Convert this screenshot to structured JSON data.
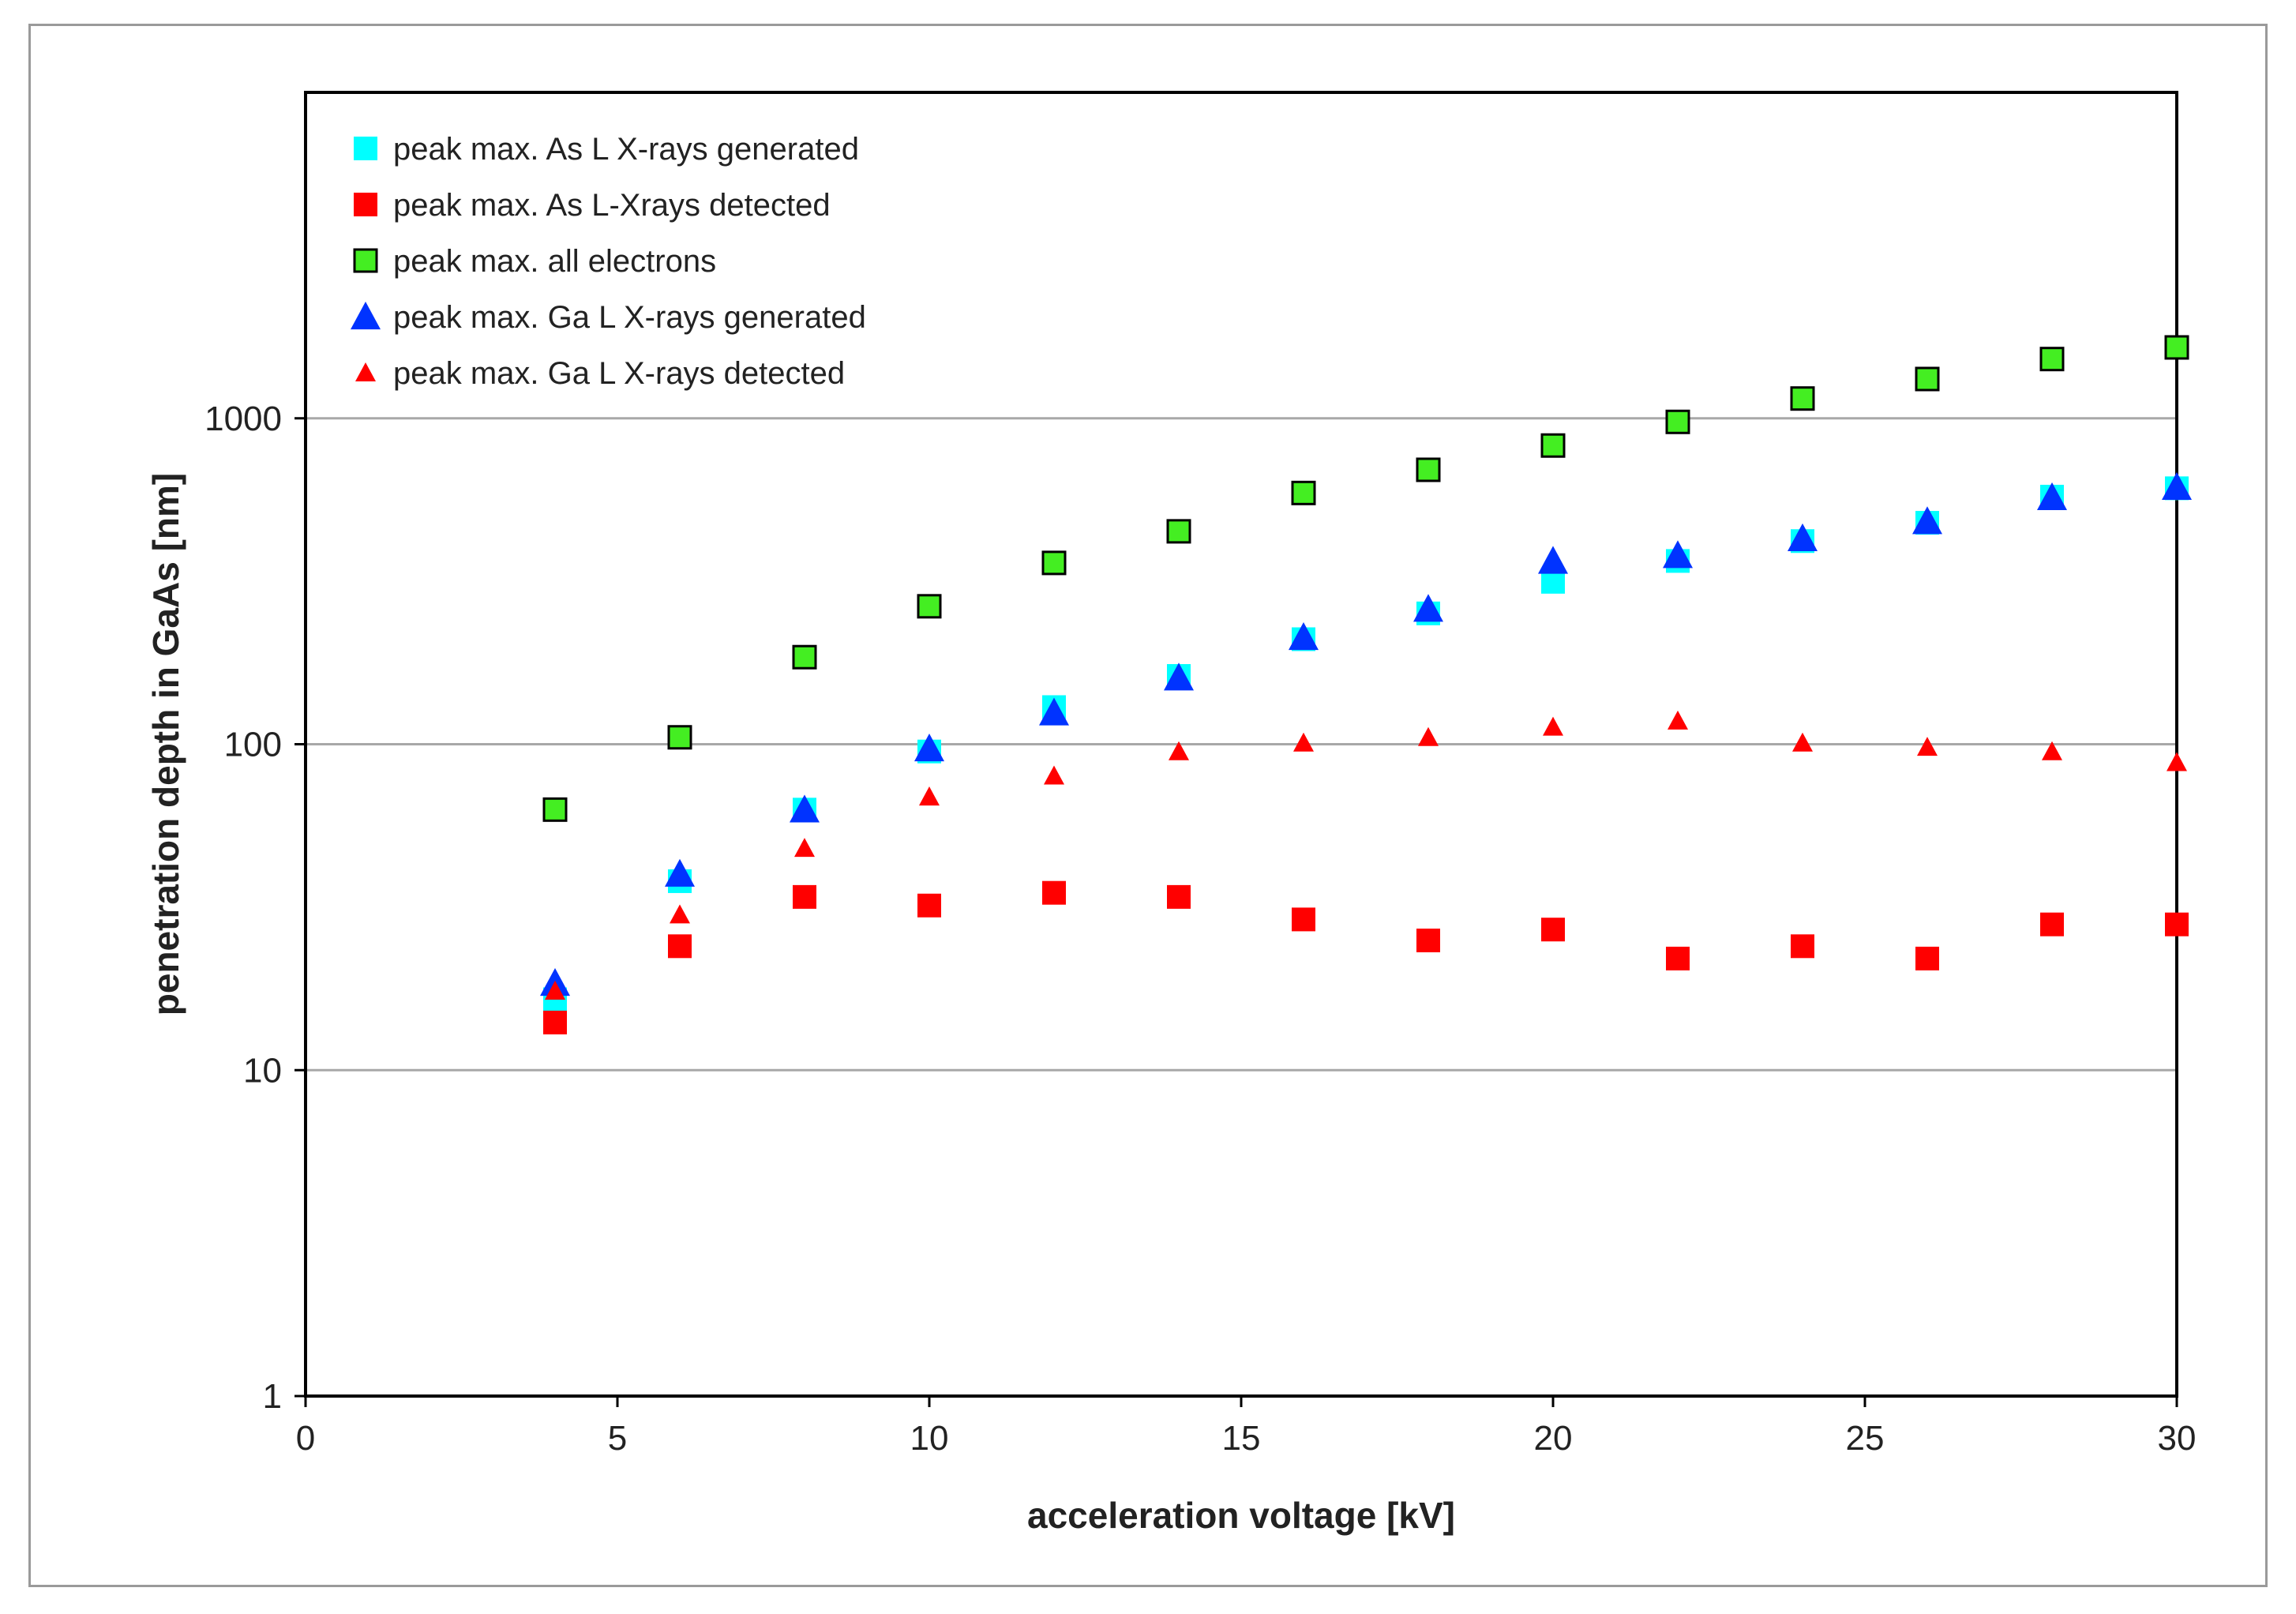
{
  "chart_data": {
    "type": "scatter",
    "title": "",
    "xlabel": "acceleration voltage [kV]",
    "ylabel": "penetration depth in GaAs [nm]",
    "xlim": [
      0,
      30
    ],
    "ylim": [
      1,
      10000
    ],
    "yscale": "log",
    "x_ticks": [
      0,
      5,
      10,
      15,
      20,
      25,
      30
    ],
    "y_ticks": [
      1,
      10,
      100,
      1000
    ],
    "y_gridlines": [
      10,
      100,
      1000
    ],
    "legend_position": "top-left",
    "series": [
      {
        "name": "peak max. As L X-rays generated",
        "marker": "square",
        "fill": "#00ffff",
        "stroke": "#00ffff",
        "x": [
          4,
          6,
          8,
          10,
          12,
          14,
          16,
          18,
          20,
          22,
          24,
          26,
          28,
          30
        ],
        "y": [
          16.5,
          38,
          63,
          95,
          130,
          162,
          210,
          252,
          315,
          365,
          420,
          478,
          575,
          610
        ]
      },
      {
        "name": "peak max. As L-Xrays detected",
        "marker": "square",
        "fill": "#ff0000",
        "stroke": "#ff0000",
        "x": [
          4,
          6,
          8,
          10,
          12,
          14,
          16,
          18,
          20,
          22,
          24,
          26,
          28,
          30
        ],
        "y": [
          14,
          24,
          34,
          32,
          35,
          34,
          29,
          25,
          27,
          22,
          24,
          22,
          28,
          28
        ]
      },
      {
        "name": "peak max. all electrons",
        "marker": "square-outline",
        "fill": "#44ee22",
        "stroke": "#000000",
        "x": [
          4,
          6,
          8,
          10,
          12,
          14,
          16,
          18,
          20,
          22,
          24,
          26,
          28,
          30
        ],
        "y": [
          63,
          105,
          185,
          265,
          360,
          450,
          590,
          695,
          825,
          975,
          1150,
          1320,
          1520,
          1650
        ]
      },
      {
        "name": "peak max. Ga L X-rays generated",
        "marker": "triangle",
        "fill": "#0033ff",
        "stroke": "#0033ff",
        "x": [
          4,
          6,
          8,
          10,
          12,
          14,
          16,
          18,
          20,
          22,
          24,
          26,
          28,
          30
        ],
        "y": [
          18.5,
          40,
          63,
          97,
          125,
          160,
          213,
          260,
          365,
          380,
          428,
          483,
          572,
          615
        ]
      },
      {
        "name": "peak max. Ga L X-rays detected",
        "marker": "triangle-small",
        "fill": "#ff0000",
        "stroke": "#ff0000",
        "x": [
          4,
          6,
          8,
          10,
          12,
          14,
          16,
          18,
          20,
          22,
          24,
          26,
          28,
          30
        ],
        "y": [
          17.5,
          30,
          48,
          69,
          80,
          95,
          101,
          105,
          113,
          118,
          101,
          98,
          95,
          88
        ]
      }
    ]
  }
}
